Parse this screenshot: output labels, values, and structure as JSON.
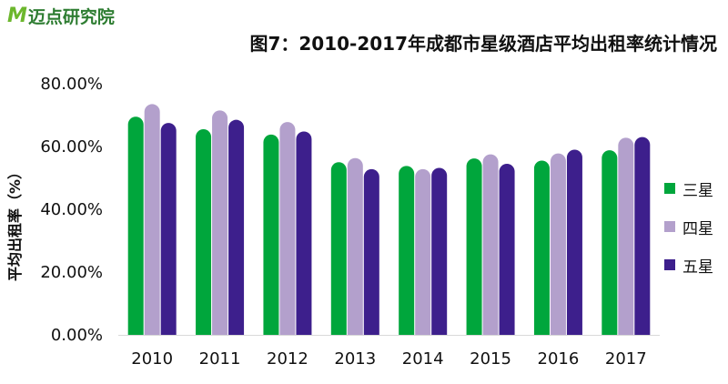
{
  "logo": {
    "mark": "M",
    "text": "迈点研究院"
  },
  "chart_data": {
    "type": "bar",
    "title": "图7：2010-2017年成都市星级酒店平均出租率统计情况",
    "ylabel": "平均出租率（%）",
    "xlabel": "",
    "categories": [
      "2010",
      "2011",
      "2012",
      "2013",
      "2014",
      "2015",
      "2016",
      "2017"
    ],
    "yticks": [
      "0.00%",
      "20.00%",
      "40.00%",
      "60.00%",
      "80.00%"
    ],
    "ylim": [
      0,
      80
    ],
    "grid": false,
    "legend_position": "right",
    "series": [
      {
        "name": "三星",
        "color": "#00a63c",
        "values": [
          69.5,
          65.5,
          63.8,
          55.0,
          53.8,
          56.2,
          55.5,
          58.8
        ]
      },
      {
        "name": "四星",
        "color": "#b3a0cc",
        "values": [
          73.5,
          71.5,
          67.8,
          56.3,
          52.8,
          57.5,
          57.8,
          62.8
        ]
      },
      {
        "name": "五星",
        "color": "#3d1f8c",
        "values": [
          67.5,
          68.5,
          64.8,
          52.8,
          53.2,
          54.5,
          59.0,
          63.0
        ]
      }
    ]
  }
}
